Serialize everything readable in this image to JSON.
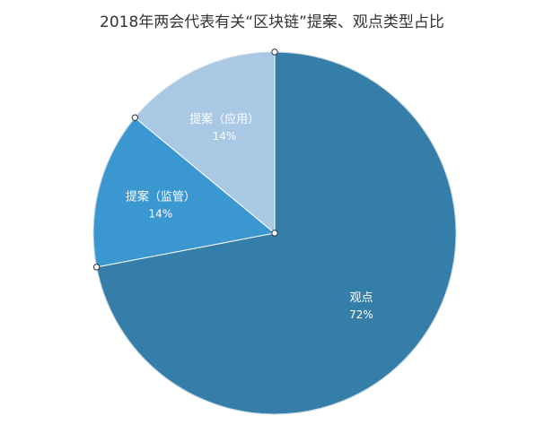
{
  "chart_data": {
    "type": "pie",
    "title": "2018年两会代表有关“区块链”提案、观点类型占比",
    "categories": [
      "观点",
      "提案（监管）",
      "提案（应用）"
    ],
    "values": [
      72,
      14,
      14
    ],
    "value_labels": [
      "72%",
      "14%",
      "14%"
    ],
    "colors": [
      "#357ea9",
      "#3b97d0",
      "#a8c8e4"
    ],
    "legend": "none",
    "data_labels": "inside"
  }
}
